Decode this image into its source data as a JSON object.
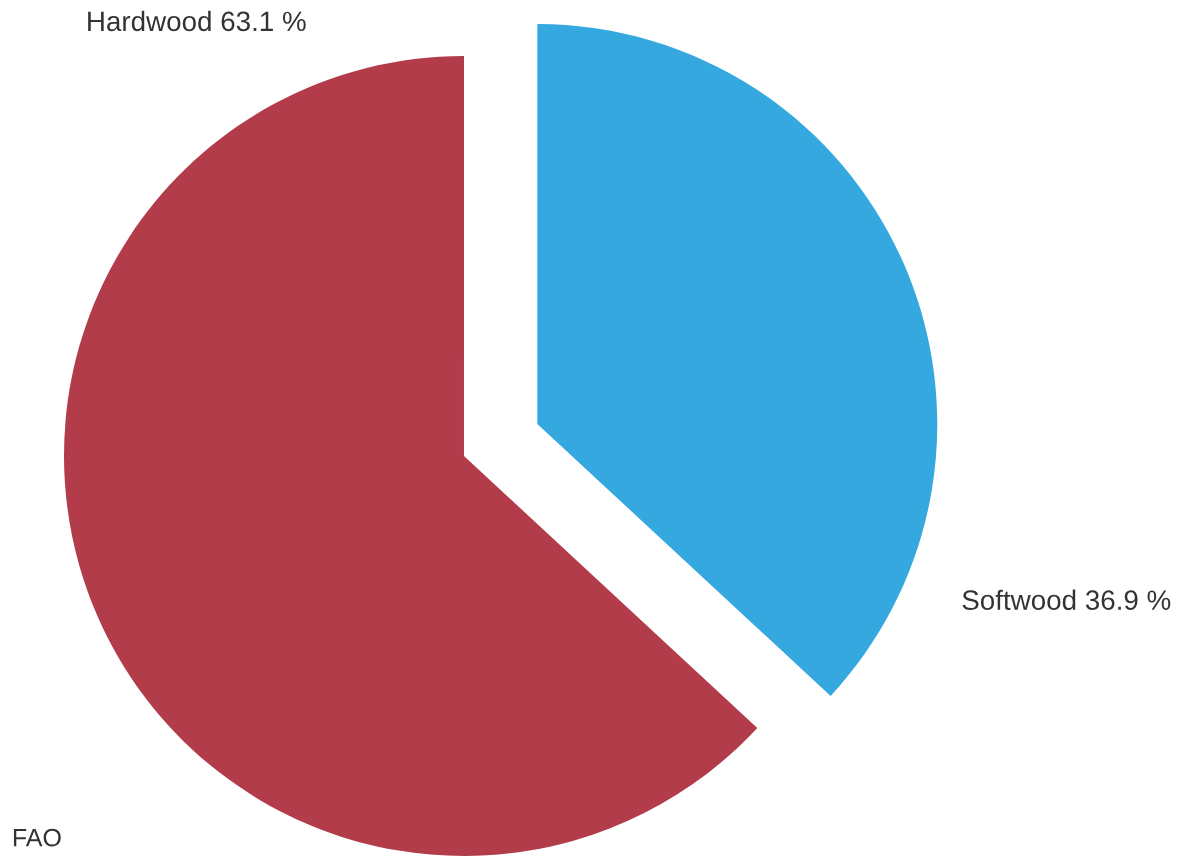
{
  "chart_data": {
    "type": "pie",
    "categories": [
      "Softwood",
      "Hardwood"
    ],
    "values": [
      36.9,
      63.1
    ],
    "value_labels": [
      "36.9 %",
      "63.1 %"
    ],
    "colors": [
      "#35a8e0",
      "#b33c4b"
    ],
    "annotations": [
      "FAO"
    ]
  }
}
